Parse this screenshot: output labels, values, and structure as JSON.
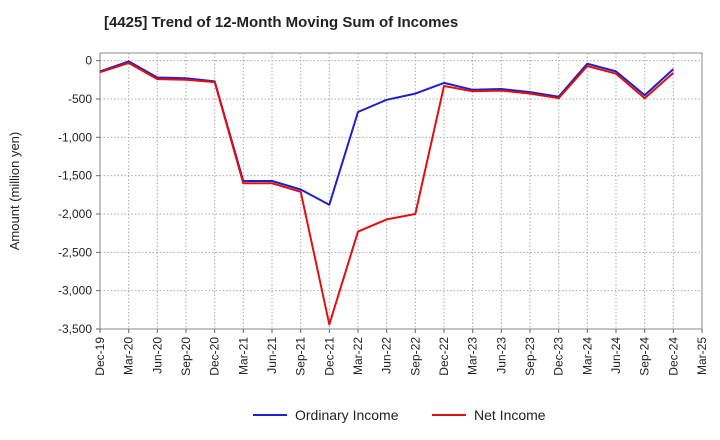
{
  "chart_data": {
    "type": "line",
    "title": "[4425]  Trend of 12-Month Moving Sum of Incomes",
    "xlabel": "",
    "ylabel": "Amount (million yen)",
    "ylim": [
      -3500,
      100
    ],
    "yticks": [
      0,
      -500,
      -1000,
      -1500,
      -2000,
      -2500,
      -3000,
      -3500
    ],
    "ytick_labels": [
      "0",
      "-500",
      "-1,000",
      "-1,500",
      "-2,000",
      "-2,500",
      "-3,000",
      "-3,500"
    ],
    "categories": [
      "Dec-19",
      "Mar-20",
      "Jun-20",
      "Sep-20",
      "Dec-20",
      "Mar-21",
      "Jun-21",
      "Sep-21",
      "Dec-21",
      "Mar-22",
      "Jun-22",
      "Sep-22",
      "Dec-22",
      "Mar-23",
      "Jun-23",
      "Sep-23",
      "Dec-23",
      "Mar-24",
      "Jun-24",
      "Sep-24",
      "Dec-24",
      "Mar-25"
    ],
    "grid": true,
    "legend_position": "bottom-center",
    "series": [
      {
        "name": "Ordinary Income",
        "color": "#1f1fcc",
        "values": [
          -140,
          -10,
          -220,
          -230,
          -270,
          -1570,
          -1570,
          -1680,
          -1880,
          -670,
          -510,
          -430,
          -290,
          -380,
          -370,
          -410,
          -470,
          -40,
          -140,
          -450,
          -110,
          null
        ]
      },
      {
        "name": "Net Income",
        "color": "#e01010",
        "values": [
          -150,
          -30,
          -240,
          -250,
          -280,
          -1600,
          -1600,
          -1710,
          -3440,
          -2230,
          -2070,
          -2000,
          -330,
          -400,
          -390,
          -430,
          -490,
          -70,
          -170,
          -490,
          -160,
          null
        ]
      }
    ]
  }
}
